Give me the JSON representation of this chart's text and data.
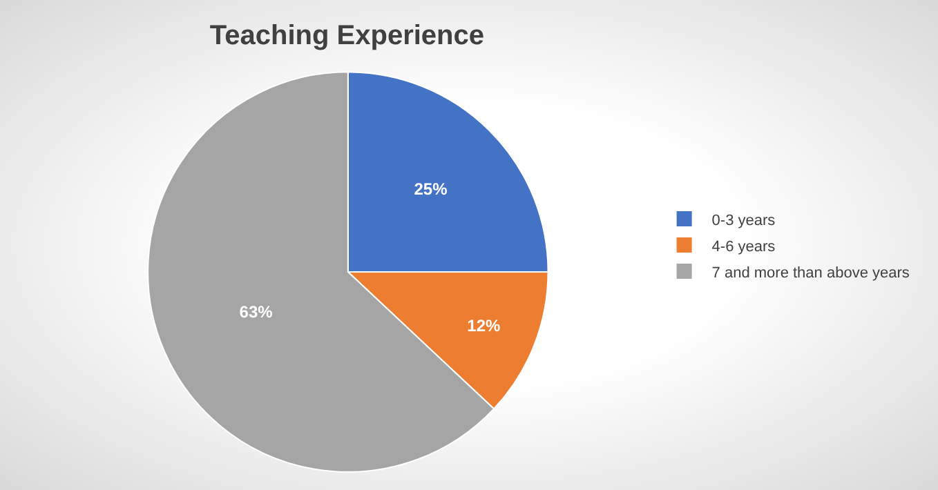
{
  "chart_data": {
    "type": "pie",
    "title": "Teaching Experience",
    "categories": [
      "0-3 years",
      "4-6 years",
      "7 and more than above years"
    ],
    "values": [
      25,
      12,
      63
    ],
    "colors": [
      "#4472c4",
      "#ed7d31",
      "#a5a5a5"
    ],
    "value_labels": [
      "25%",
      "12%",
      "63%"
    ],
    "legend": "right"
  }
}
